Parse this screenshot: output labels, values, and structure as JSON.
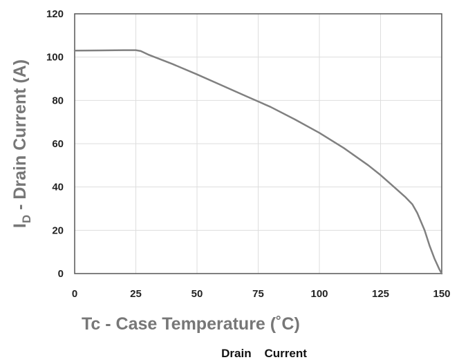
{
  "chart_data": {
    "type": "line",
    "title": "",
    "caption": "Drain    Current",
    "xlabel": "Tc - Case Temperature (˚C)",
    "ylabel_main": "I",
    "ylabel_sub": "D",
    "ylabel_rest": " - Drain Current (A)",
    "xlim": [
      0,
      150
    ],
    "ylim": [
      0,
      120
    ],
    "xticks": [
      0,
      25,
      50,
      75,
      100,
      125,
      150
    ],
    "yticks": [
      0,
      20,
      40,
      60,
      80,
      100,
      120
    ],
    "grid": true,
    "series": [
      {
        "name": "",
        "color": "#808080",
        "points": [
          [
            0,
            103
          ],
          [
            10,
            103.1
          ],
          [
            20,
            103.2
          ],
          [
            25,
            103.2
          ],
          [
            27,
            102.8
          ],
          [
            30,
            101.2
          ],
          [
            40,
            96.8
          ],
          [
            50,
            92
          ],
          [
            60,
            87
          ],
          [
            70,
            82
          ],
          [
            75,
            79.5
          ],
          [
            80,
            77
          ],
          [
            90,
            71.2
          ],
          [
            100,
            65
          ],
          [
            110,
            58
          ],
          [
            120,
            50
          ],
          [
            125,
            45.5
          ],
          [
            130,
            40.5
          ],
          [
            135,
            35.5
          ],
          [
            138,
            32
          ],
          [
            140,
            28
          ],
          [
            143,
            20
          ],
          [
            145,
            13
          ],
          [
            147,
            7
          ],
          [
            149,
            2
          ],
          [
            150,
            0
          ]
        ]
      }
    ]
  }
}
